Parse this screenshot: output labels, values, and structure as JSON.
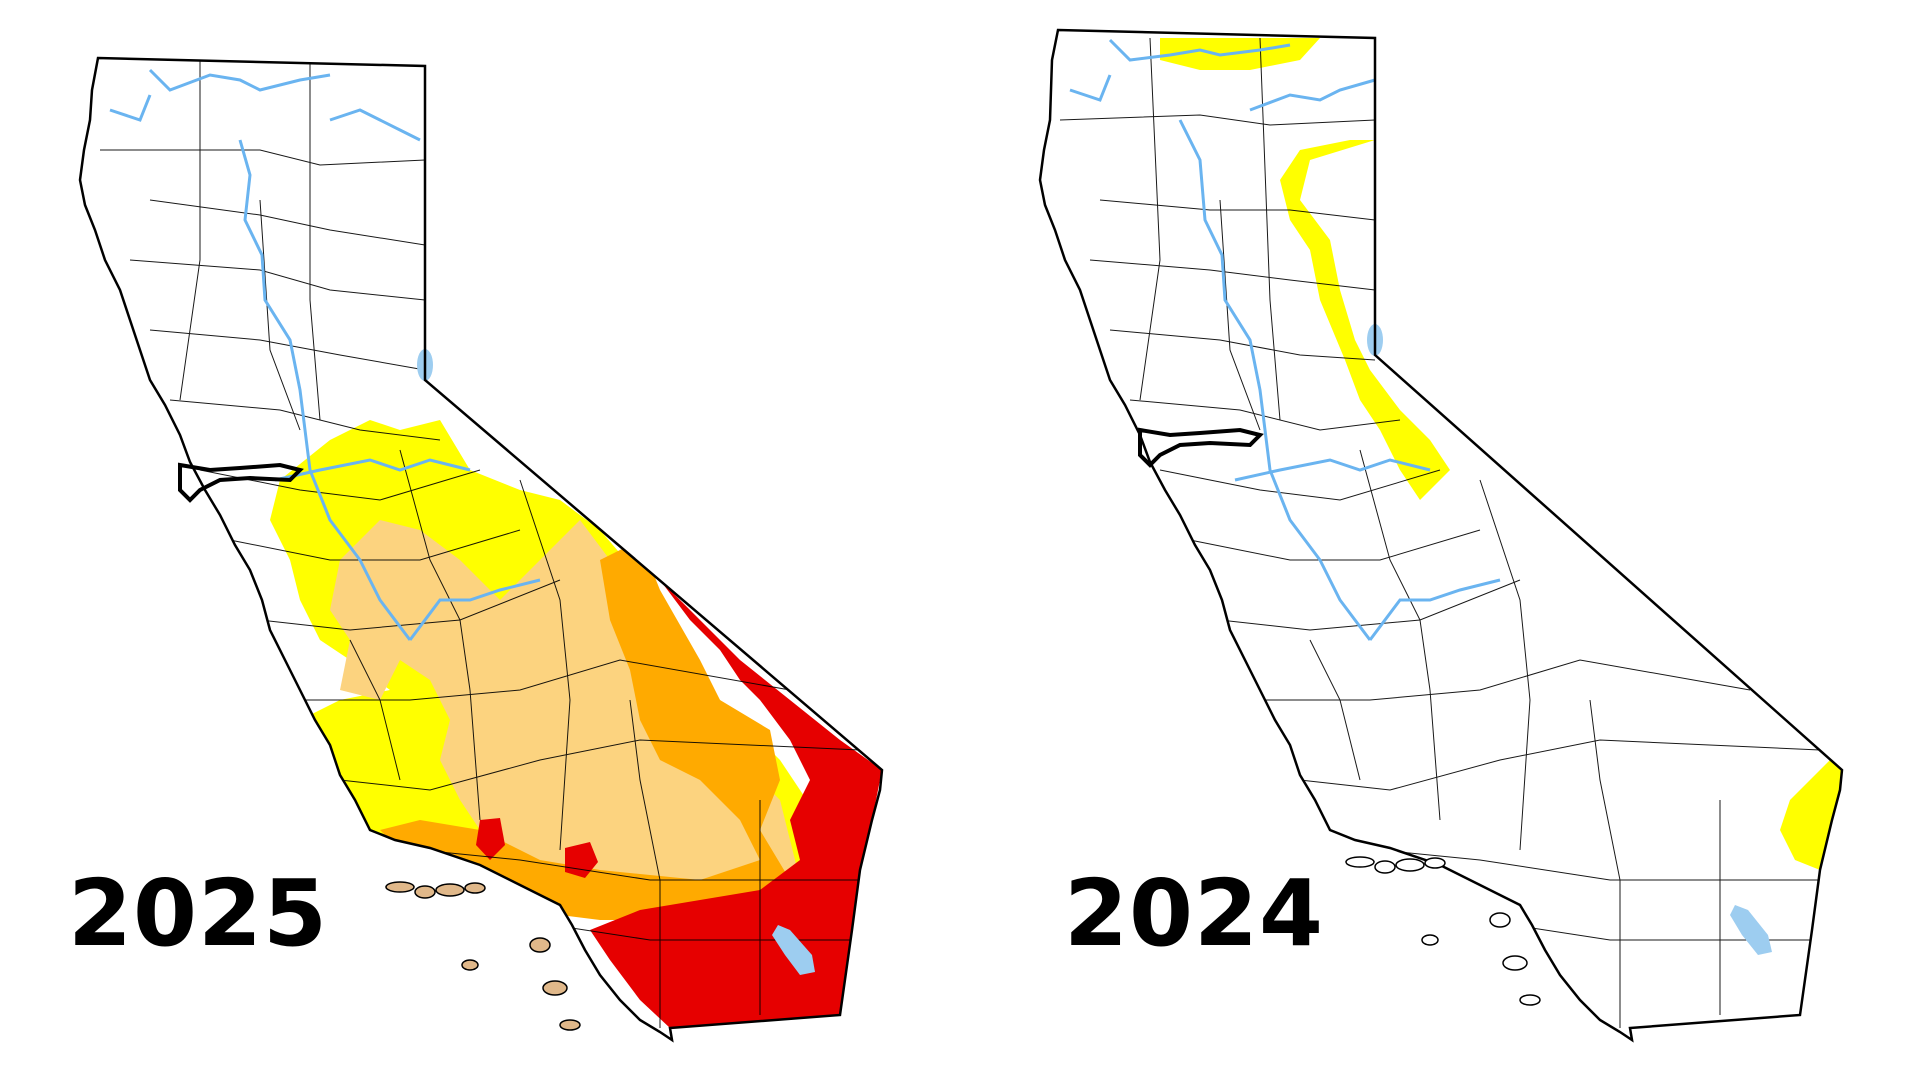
{
  "maps": [
    {
      "year_label": "2025",
      "map_type": "drought-severity map of California",
      "drought_categories_shown": [
        "abnormally-dry",
        "moderate",
        "severe",
        "extreme"
      ]
    },
    {
      "year_label": "2024",
      "map_type": "drought-severity map of California",
      "drought_categories_shown": [
        "abnormally-dry"
      ]
    }
  ],
  "colors": {
    "abnormally_dry": "#ffff00",
    "moderate_drought": "#fcd37f",
    "severe_drought": "#ffaa00",
    "extreme_drought": "#e60000",
    "water": "#6ab4f0",
    "lake": "#9dcdf0",
    "county_line": "#000000",
    "island_fill": "#e0b88a"
  }
}
